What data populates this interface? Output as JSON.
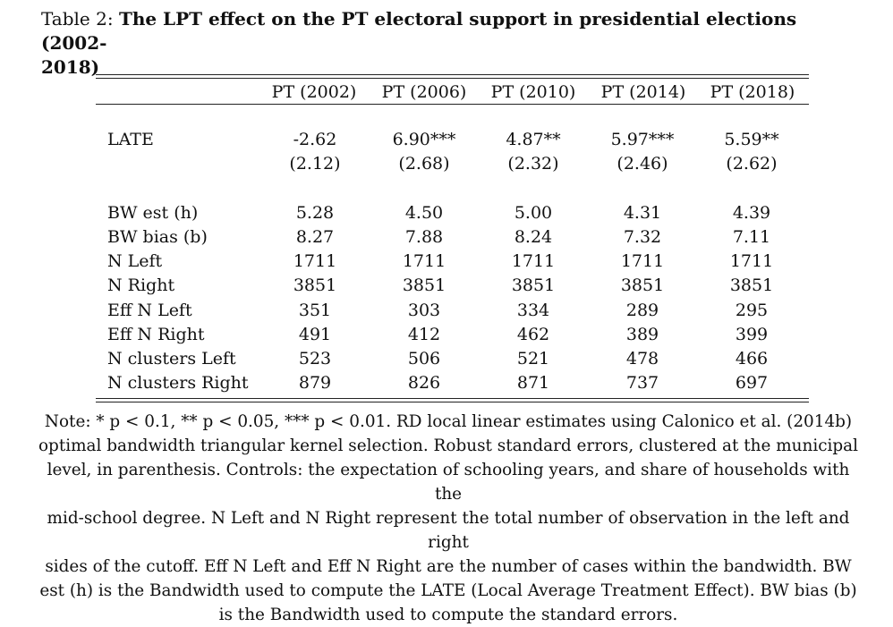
{
  "caption": {
    "prefix": "Table 2:",
    "title": "The LPT effect on the PT electoral support in presidential elections (2002-",
    "title_cont": "2018)"
  },
  "table": {
    "columns": [
      "PT (2002)",
      "PT (2006)",
      "PT (2010)",
      "PT (2014)",
      "PT (2018)"
    ],
    "late": {
      "label": "LATE",
      "estimates": [
        "-2.62",
        "6.90***",
        "4.87**",
        "5.97***",
        "5.59**"
      ],
      "std_errors": [
        "(2.12)",
        "(2.68)",
        "(2.32)",
        "(2.46)",
        "(2.62)"
      ]
    },
    "rows": [
      {
        "label": "BW est (h)",
        "values": [
          "5.28",
          "4.50",
          "5.00",
          "4.31",
          "4.39"
        ]
      },
      {
        "label": "BW bias (b)",
        "values": [
          "8.27",
          "7.88",
          "8.24",
          "7.32",
          "7.11"
        ]
      },
      {
        "label": "N Left",
        "values": [
          "1711",
          "1711",
          "1711",
          "1711",
          "1711"
        ]
      },
      {
        "label": "N Right",
        "values": [
          "3851",
          "3851",
          "3851",
          "3851",
          "3851"
        ]
      },
      {
        "label": "Eff N Left",
        "values": [
          "351",
          "303",
          "334",
          "289",
          "295"
        ]
      },
      {
        "label": "Eff N Right",
        "values": [
          "491",
          "412",
          "462",
          "389",
          "399"
        ]
      },
      {
        "label": "N clusters Left",
        "values": [
          "523",
          "506",
          "521",
          "478",
          "466"
        ]
      },
      {
        "label": "N clusters Right",
        "values": [
          "879",
          "826",
          "871",
          "737",
          "697"
        ]
      }
    ]
  },
  "note": {
    "lines": [
      "Note: * p < 0.1, ** p < 0.05, *** p < 0.01. RD local linear estimates using Calonico et al. (2014b)",
      "optimal bandwidth triangular kernel selection. Robust standard errors, clustered at the municipal",
      "level, in parenthesis. Controls: the expectation of schooling years, and share of households with the",
      "mid-school degree. N Left and N Right represent the total number of observation in the left and right",
      "sides of the cutoff. Eff N Left and Eff N Right are the number of cases within the bandwidth. BW",
      "est (h) is the Bandwidth used to compute the LATE (Local Average Treatment Effect). BW bias (b)",
      "is the Bandwidth used to compute the standard errors."
    ]
  }
}
